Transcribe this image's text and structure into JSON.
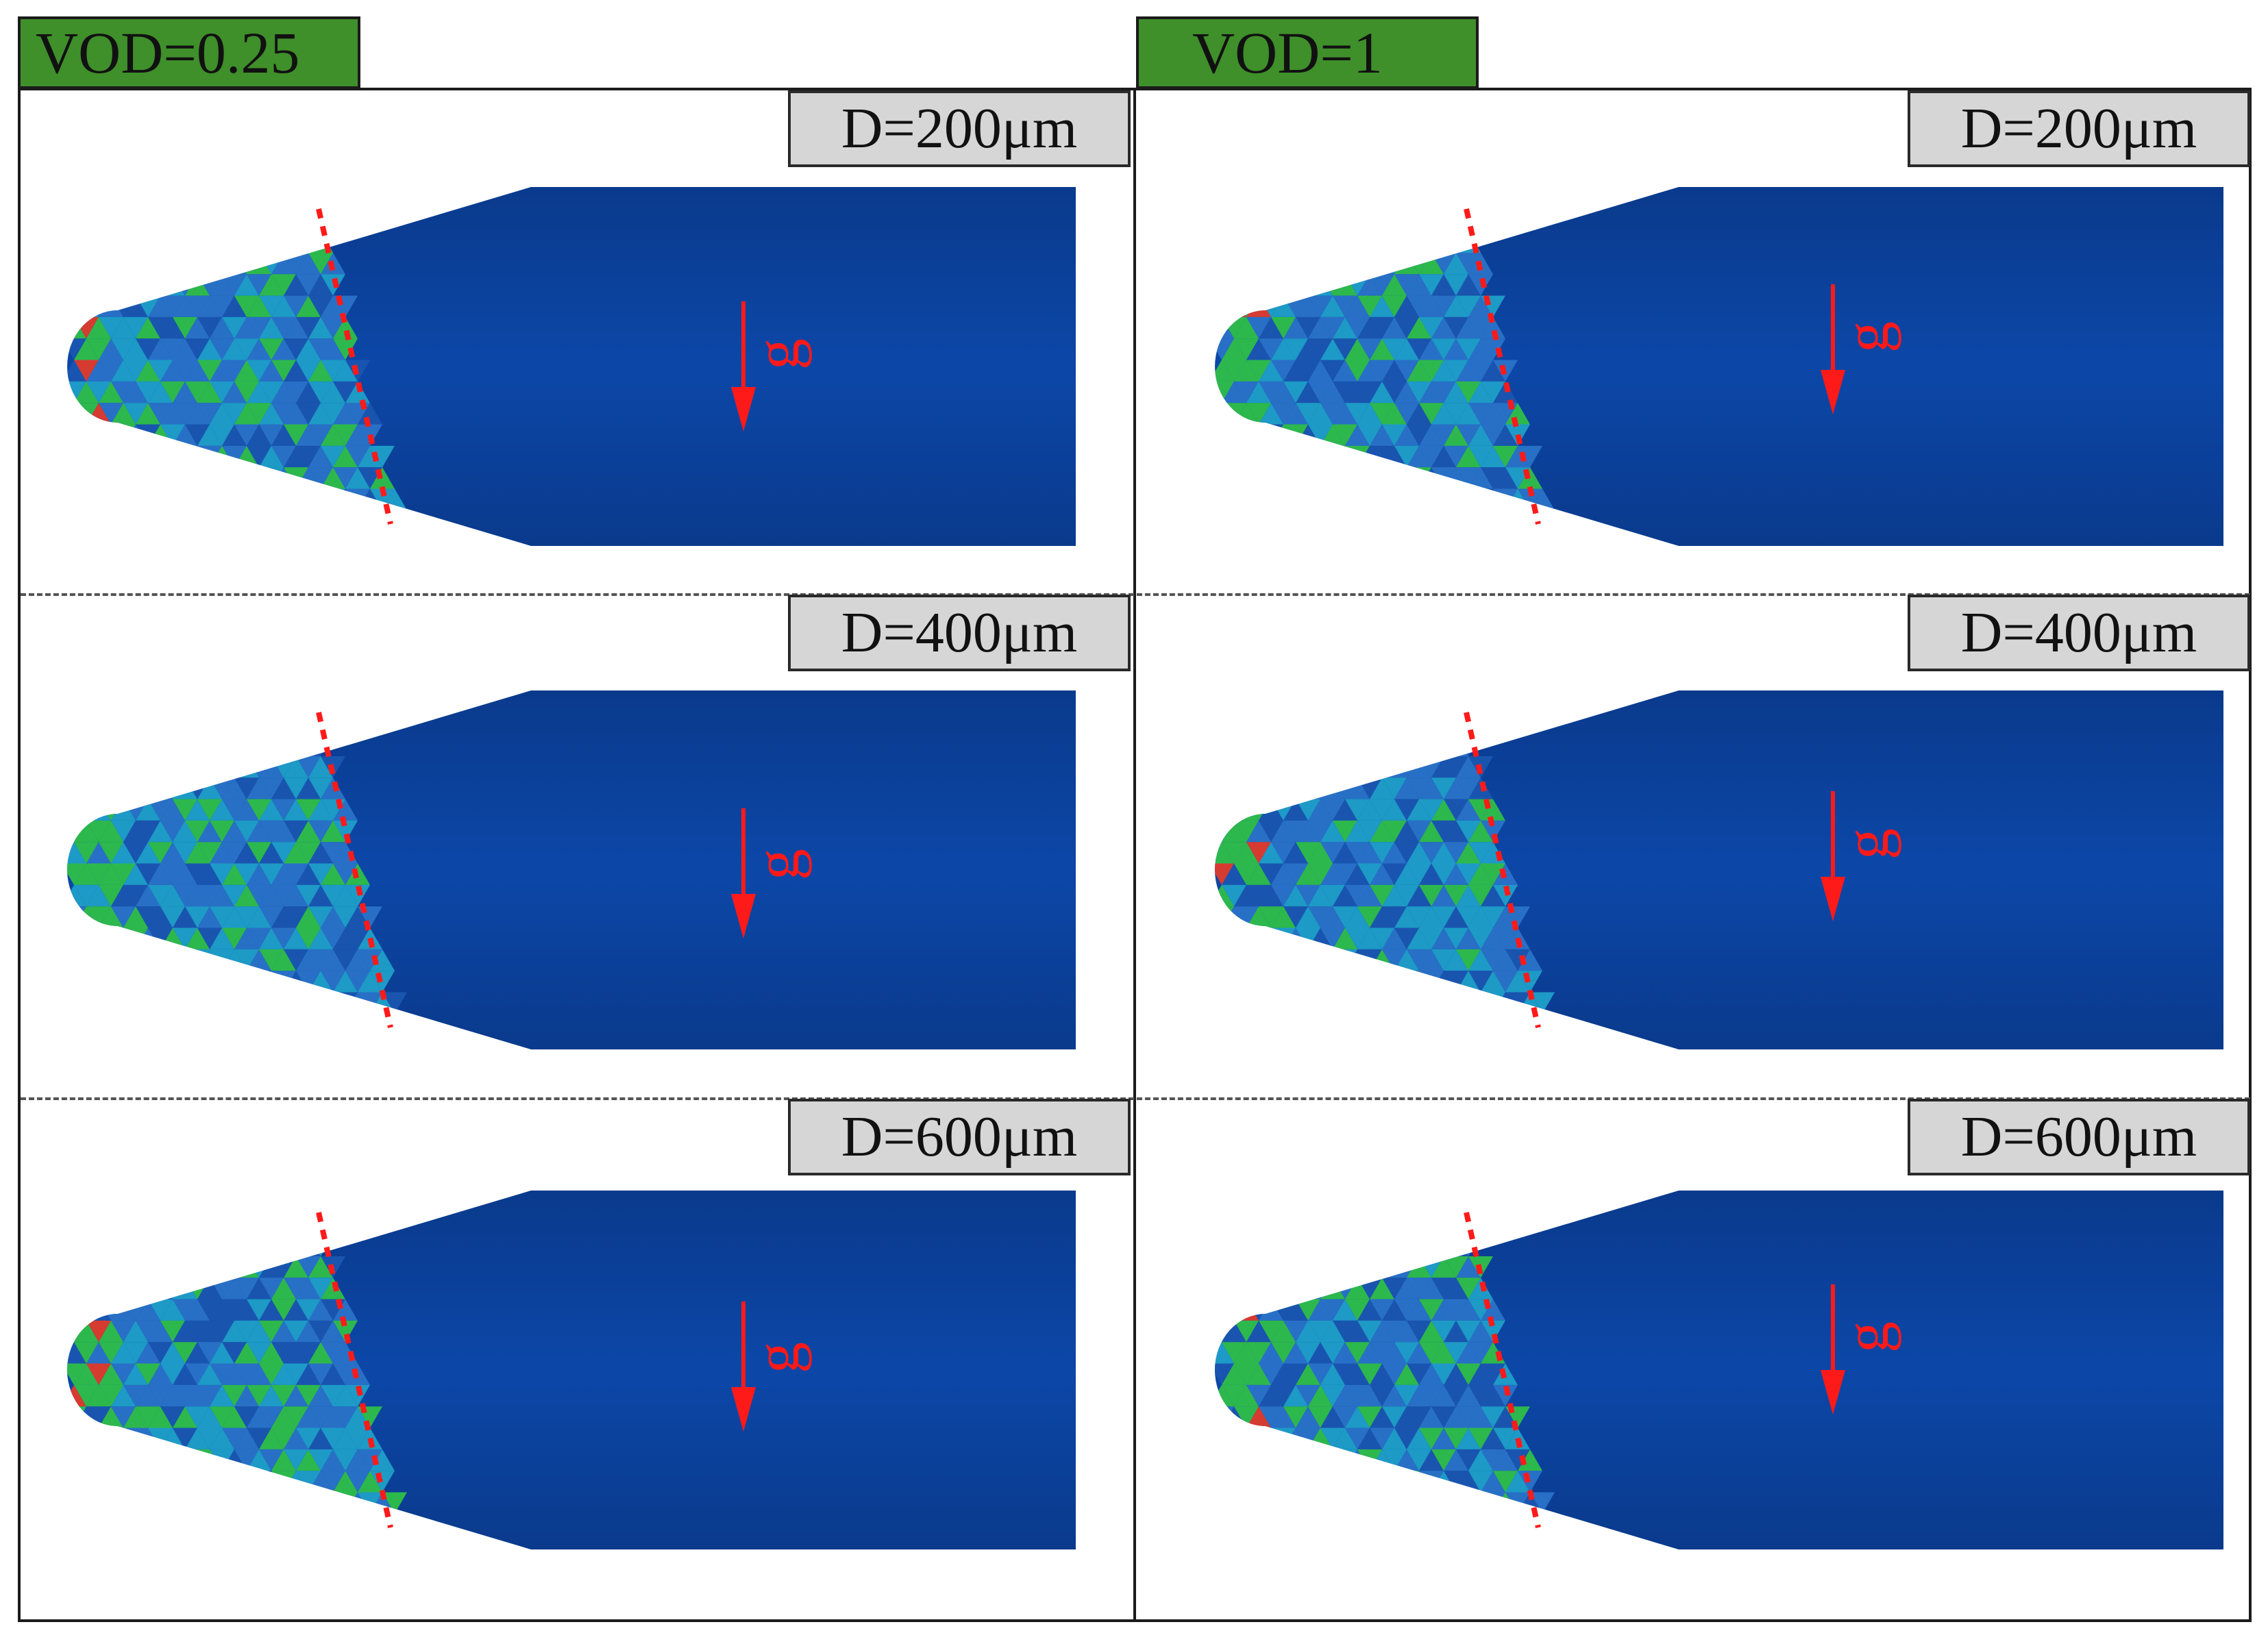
{
  "column_headers": {
    "left": "VOD=0.25",
    "right": "VOD=1"
  },
  "row_labels": [
    "D=200μm",
    "D=400μm",
    "D=600μm"
  ],
  "gravity_label": "g",
  "colors": {
    "header_green": "#3f8f2a",
    "label_gray": "#d6d6d6",
    "body_blue": "#0b3f9a",
    "mesh_light": "#2a73c8",
    "mesh_cyan": "#1f9fc8",
    "mesh_green": "#2fbf49",
    "mesh_red": "#e23b2b",
    "annotation_red": "#ff1a1a"
  }
}
